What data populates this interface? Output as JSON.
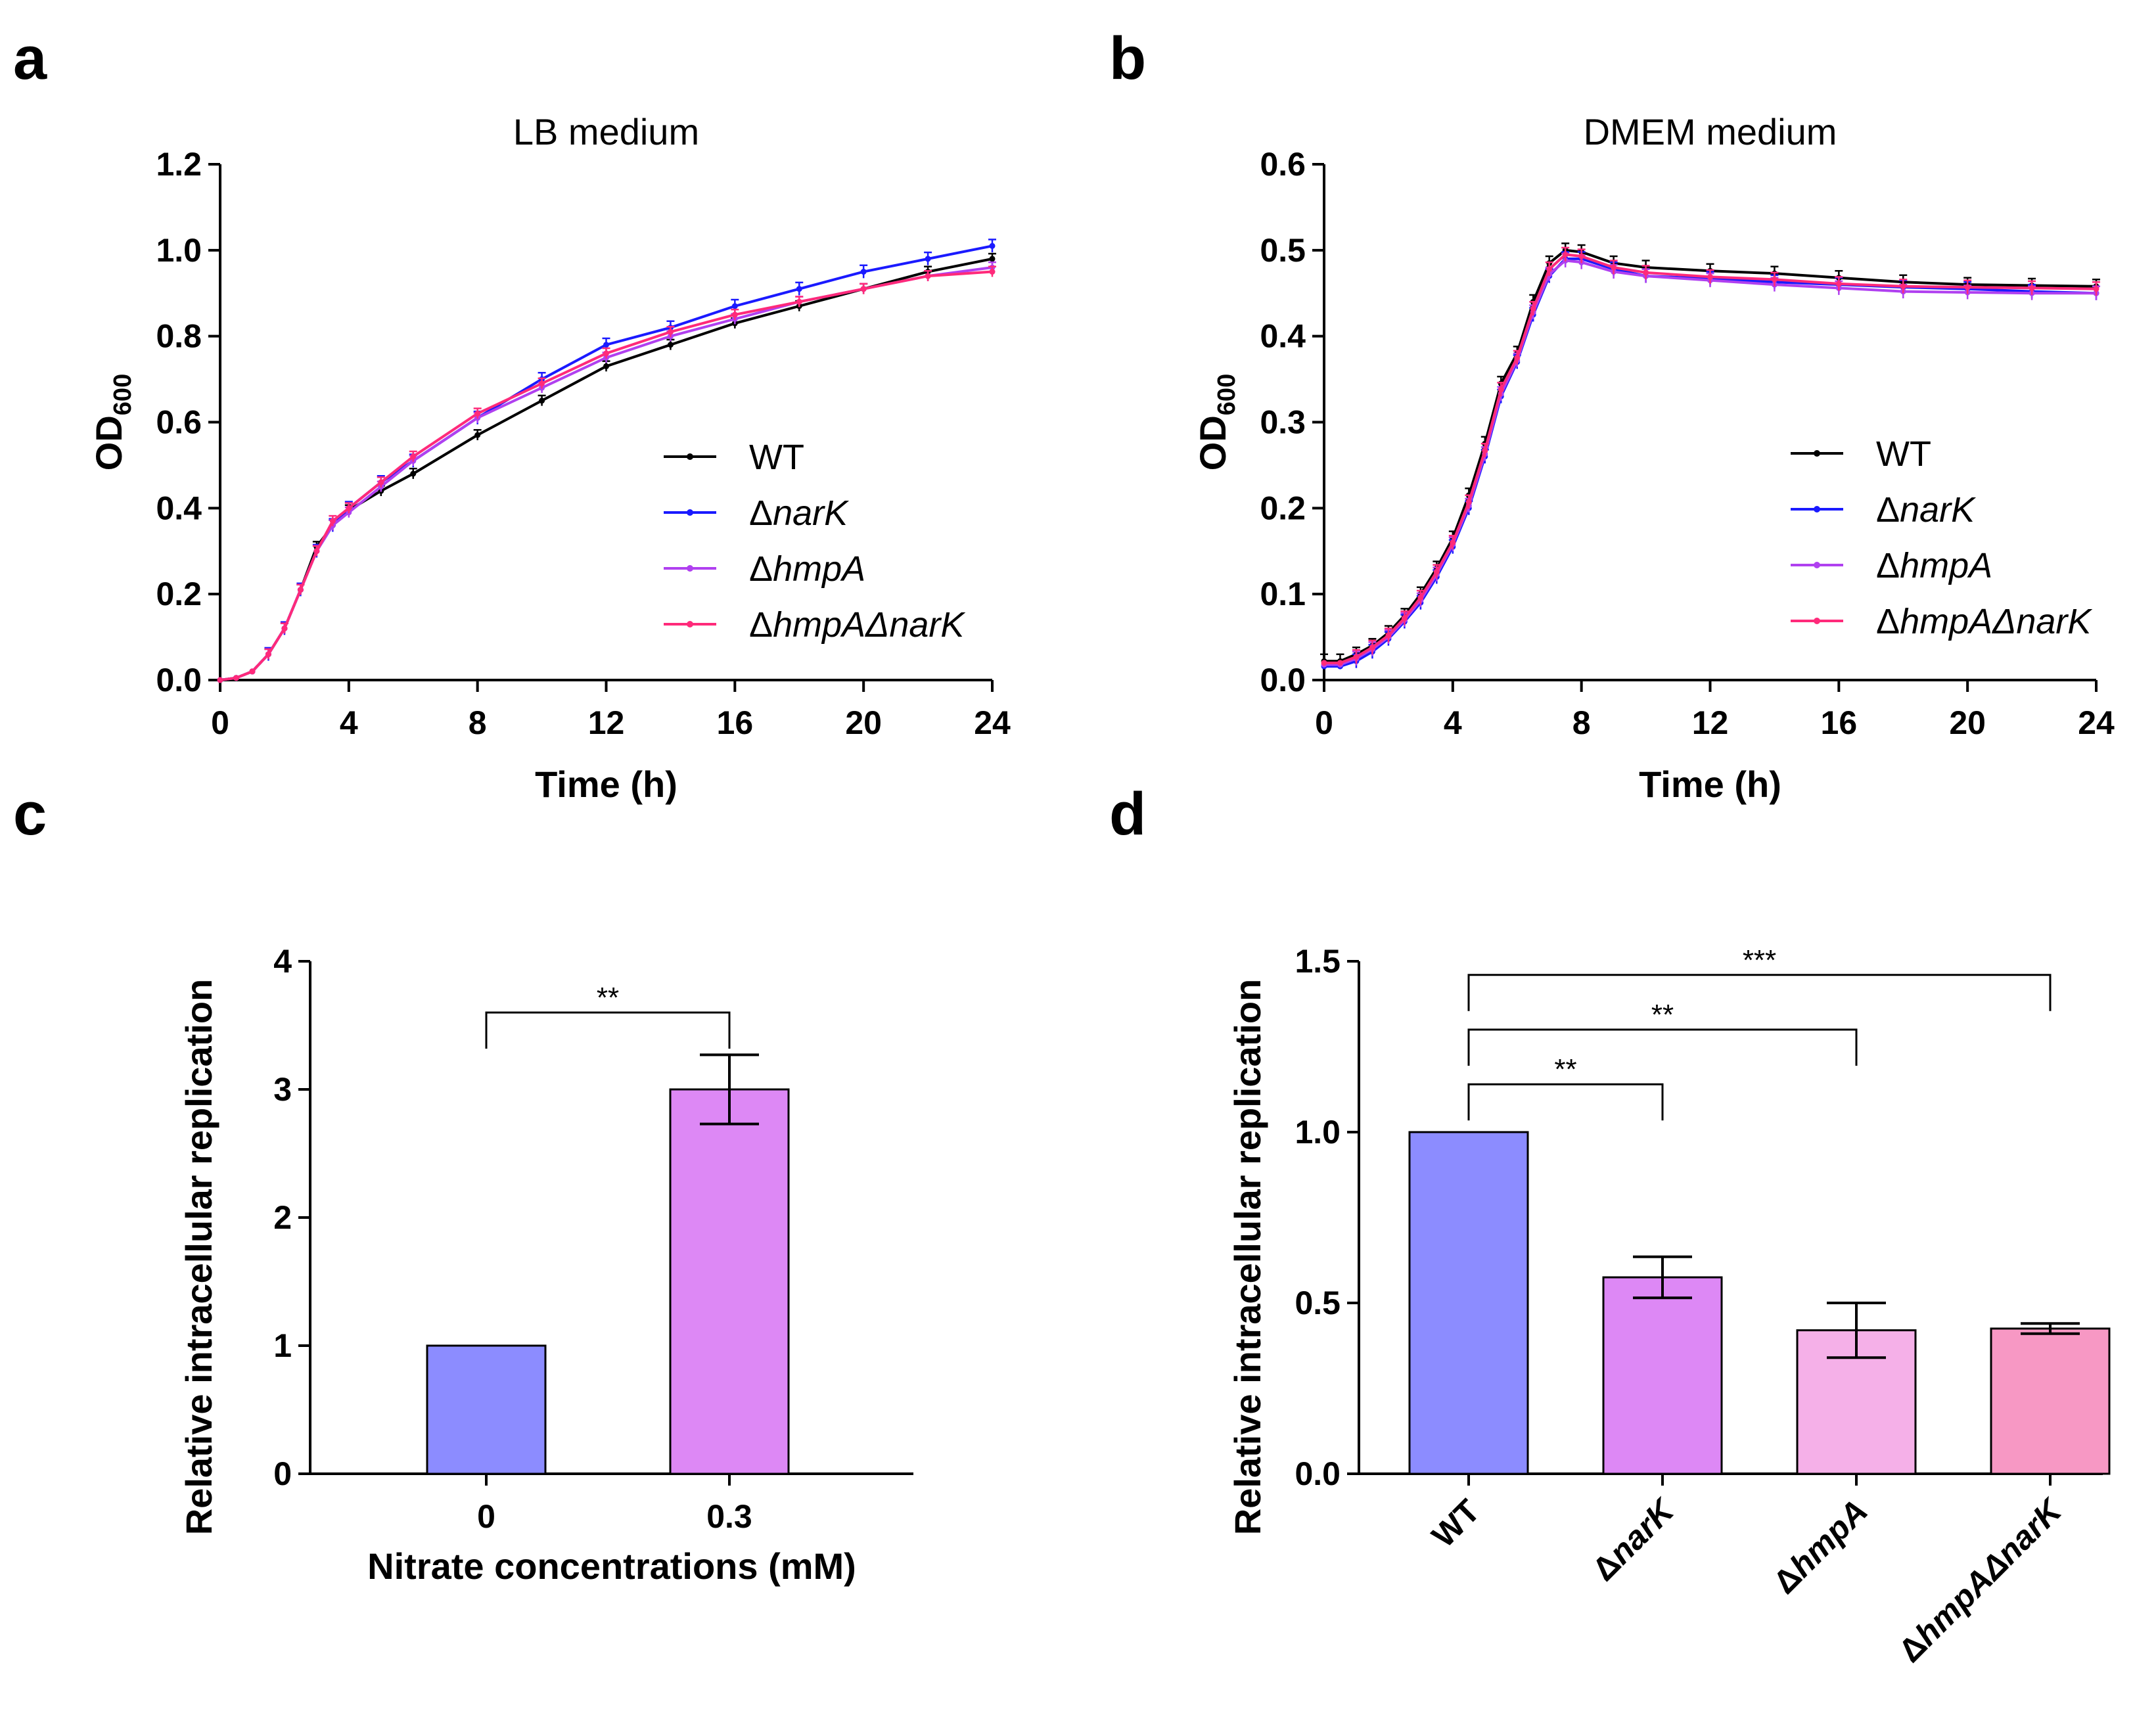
{
  "panels": {
    "a": "a",
    "b": "b",
    "c": "c",
    "d": "d"
  },
  "chart_data": [
    {
      "id": "a",
      "type": "line",
      "title": "LB medium",
      "xlabel": "Time (h)",
      "ylabel_main": "OD",
      "ylabel_sub": "600",
      "xlim": [
        0,
        24
      ],
      "ylim": [
        0,
        1.2
      ],
      "xticks": [
        0,
        4,
        8,
        12,
        16,
        20,
        24
      ],
      "yticks": [
        "0.0",
        "0.2",
        "0.4",
        "0.6",
        "0.8",
        "1.0",
        "1.2"
      ],
      "legend_position": "right-middle",
      "x": [
        0,
        0.5,
        1,
        1.5,
        2,
        2.5,
        3,
        3.5,
        4,
        5,
        6,
        8,
        10,
        12,
        14,
        16,
        18,
        20,
        22,
        24
      ],
      "series": [
        {
          "name": "WT",
          "prefix": "",
          "italic": "",
          "color": "#000000",
          "values": [
            0,
            0.005,
            0.02,
            0.06,
            0.12,
            0.21,
            0.31,
            0.36,
            0.395,
            0.44,
            0.48,
            0.57,
            0.65,
            0.73,
            0.78,
            0.83,
            0.87,
            0.91,
            0.95,
            0.98
          ],
          "err": 0.012
        },
        {
          "name": "ΔnarK",
          "prefix": "Δ",
          "italic": "narK",
          "color": "#1a1aff",
          "values": [
            0,
            0.005,
            0.02,
            0.06,
            0.12,
            0.21,
            0.3,
            0.36,
            0.4,
            0.46,
            0.51,
            0.61,
            0.7,
            0.78,
            0.82,
            0.87,
            0.91,
            0.95,
            0.98,
            1.01
          ],
          "err": 0.015
        },
        {
          "name": "ΔhmpA",
          "prefix": "Δ",
          "italic": "hmpA",
          "color": "#b040f0",
          "values": [
            0,
            0.005,
            0.02,
            0.06,
            0.12,
            0.21,
            0.3,
            0.36,
            0.39,
            0.45,
            0.51,
            0.61,
            0.68,
            0.75,
            0.8,
            0.84,
            0.88,
            0.91,
            0.94,
            0.96
          ],
          "err": 0.012
        },
        {
          "name": "ΔhmpAΔnarK",
          "prefix": "Δ",
          "italic": "hmpAΔnarK",
          "color": "#ff2a7a",
          "values": [
            0,
            0.005,
            0.02,
            0.06,
            0.12,
            0.21,
            0.3,
            0.37,
            0.4,
            0.46,
            0.52,
            0.62,
            0.69,
            0.76,
            0.81,
            0.85,
            0.88,
            0.91,
            0.94,
            0.95
          ],
          "err": 0.012
        }
      ]
    },
    {
      "id": "b",
      "type": "line",
      "title": "DMEM medium",
      "xlabel": "Time (h)",
      "ylabel_main": "OD",
      "ylabel_sub": "600",
      "xlim": [
        0,
        24
      ],
      "ylim": [
        0,
        0.6
      ],
      "xticks": [
        0,
        4,
        8,
        12,
        16,
        20,
        24
      ],
      "yticks": [
        "0.0",
        "0.1",
        "0.2",
        "0.3",
        "0.4",
        "0.5",
        "0.6"
      ],
      "legend_position": "right-middle",
      "x": [
        0,
        0.5,
        1,
        1.5,
        2,
        2.5,
        3,
        3.5,
        4,
        4.5,
        5,
        5.5,
        6,
        6.5,
        7,
        7.5,
        8,
        9,
        10,
        12,
        14,
        16,
        18,
        20,
        22,
        24
      ],
      "series": [
        {
          "name": "WT",
          "prefix": "",
          "italic": "",
          "color": "#000000",
          "values": [
            0.022,
            0.022,
            0.03,
            0.04,
            0.055,
            0.075,
            0.1,
            0.13,
            0.165,
            0.215,
            0.275,
            0.345,
            0.38,
            0.44,
            0.485,
            0.5,
            0.498,
            0.485,
            0.48,
            0.476,
            0.473,
            0.468,
            0.463,
            0.46,
            0.459,
            0.458
          ],
          "err": 0.008
        },
        {
          "name": "ΔnarK",
          "prefix": "Δ",
          "italic": "narK",
          "color": "#1a1aff",
          "values": [
            0.016,
            0.016,
            0.022,
            0.033,
            0.048,
            0.068,
            0.09,
            0.12,
            0.155,
            0.2,
            0.26,
            0.33,
            0.37,
            0.425,
            0.47,
            0.49,
            0.49,
            0.478,
            0.47,
            0.467,
            0.463,
            0.46,
            0.457,
            0.455,
            0.452,
            0.45
          ],
          "err": 0.008
        },
        {
          "name": "ΔhmpA",
          "prefix": "Δ",
          "italic": "hmpA",
          "color": "#b040f0",
          "values": [
            0.018,
            0.018,
            0.025,
            0.036,
            0.05,
            0.07,
            0.093,
            0.123,
            0.158,
            0.203,
            0.263,
            0.333,
            0.372,
            0.428,
            0.472,
            0.488,
            0.486,
            0.475,
            0.47,
            0.465,
            0.46,
            0.456,
            0.452,
            0.451,
            0.45,
            0.45
          ],
          "err": 0.008
        },
        {
          "name": "ΔhmpAΔnarK",
          "prefix": "Δ",
          "italic": "hmpAΔnarK",
          "color": "#ff2a7a",
          "values": [
            0.02,
            0.02,
            0.027,
            0.038,
            0.052,
            0.072,
            0.096,
            0.126,
            0.16,
            0.207,
            0.267,
            0.338,
            0.375,
            0.432,
            0.478,
            0.495,
            0.493,
            0.48,
            0.474,
            0.469,
            0.466,
            0.461,
            0.458,
            0.457,
            0.456,
            0.455
          ],
          "err": 0.008
        }
      ]
    },
    {
      "id": "c",
      "type": "bar",
      "xlabel": "Nitrate concentrations (mM)",
      "ylabel": "Relative intracellular replication",
      "ylim": [
        0,
        4
      ],
      "yticks": [
        "0",
        "1",
        "2",
        "3",
        "4"
      ],
      "categories": [
        "0",
        "0.3"
      ],
      "values": [
        1.0,
        3.0
      ],
      "errors": [
        0,
        0.27
      ],
      "colors": [
        "#8c8cff",
        "#dd88f5"
      ],
      "significance": [
        {
          "from": 0,
          "to": 1,
          "label": "**",
          "y": 3.6
        }
      ]
    },
    {
      "id": "d",
      "type": "bar",
      "xlabel": "",
      "ylabel": "Relative intracellular replication",
      "ylim": [
        0,
        1.5
      ],
      "yticks": [
        "0.0",
        "0.5",
        "1.0",
        "1.5"
      ],
      "categories": [
        {
          "prefix": "",
          "italic": "WT"
        },
        {
          "prefix": "Δ",
          "italic": "narK"
        },
        {
          "prefix": "Δ",
          "italic": "hmpA"
        },
        {
          "prefix": "Δ",
          "italic": "hmpAΔnarK"
        }
      ],
      "category_names": [
        "WT",
        "ΔnarK",
        "ΔhmpA",
        "ΔhmpAΔnarK"
      ],
      "values": [
        1.0,
        0.575,
        0.42,
        0.425
      ],
      "errors": [
        0,
        0.06,
        0.08,
        0.015
      ],
      "colors": [
        "#8c8cff",
        "#dd88f5",
        "#f5b0e8",
        "#f798c4"
      ],
      "significance": [
        {
          "from": 0,
          "to": 1,
          "label": "**",
          "y": 1.14
        },
        {
          "from": 0,
          "to": 2,
          "label": "**",
          "y": 1.3
        },
        {
          "from": 0,
          "to": 3,
          "label": "***",
          "y": 1.46
        }
      ]
    }
  ]
}
